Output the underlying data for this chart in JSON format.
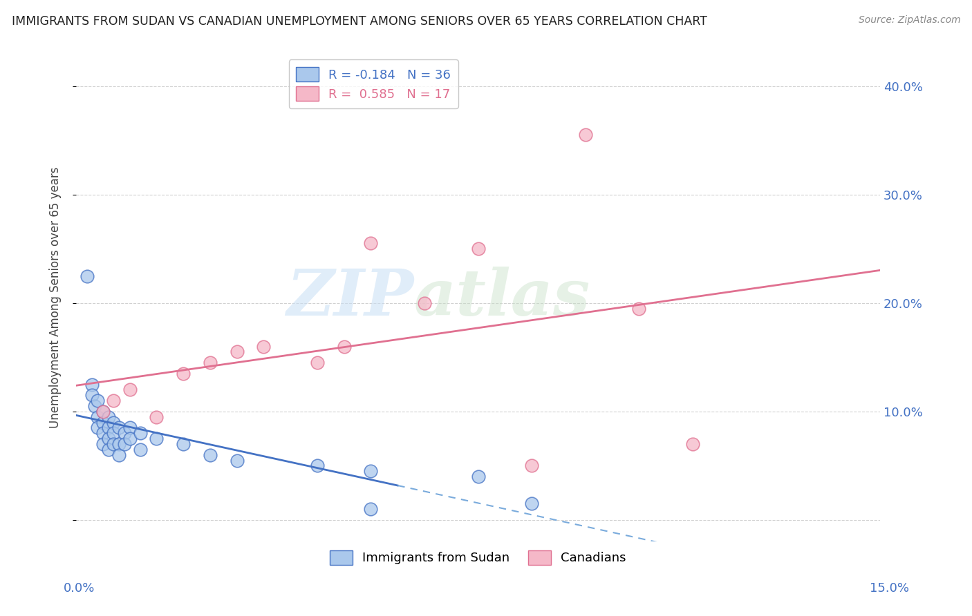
{
  "title": "IMMIGRANTS FROM SUDAN VS CANADIAN UNEMPLOYMENT AMONG SENIORS OVER 65 YEARS CORRELATION CHART",
  "source": "Source: ZipAtlas.com",
  "ylabel": "Unemployment Among Seniors over 65 years",
  "xlim": [
    0.0,
    15.0
  ],
  "ylim": [
    -2.0,
    43.0
  ],
  "xtick_labels": [
    "0.0%",
    "15.0%"
  ],
  "xtick_vals": [
    0.0,
    15.0
  ],
  "ytick_vals": [
    0,
    10,
    20,
    30,
    40
  ],
  "ytick_labels": [
    "",
    "10.0%",
    "20.0%",
    "30.0%",
    "40.0%"
  ],
  "legend_blue_label": "R = -0.184   N = 36",
  "legend_pink_label": "R =  0.585   N = 17",
  "watermark_1": "ZIP",
  "watermark_2": "atlas",
  "blue_scatter": [
    [
      0.2,
      22.5
    ],
    [
      0.3,
      12.5
    ],
    [
      0.3,
      11.5
    ],
    [
      0.35,
      10.5
    ],
    [
      0.4,
      11.0
    ],
    [
      0.4,
      9.5
    ],
    [
      0.4,
      8.5
    ],
    [
      0.5,
      10.0
    ],
    [
      0.5,
      9.0
    ],
    [
      0.5,
      8.0
    ],
    [
      0.5,
      7.0
    ],
    [
      0.6,
      9.5
    ],
    [
      0.6,
      8.5
    ],
    [
      0.6,
      7.5
    ],
    [
      0.6,
      6.5
    ],
    [
      0.7,
      9.0
    ],
    [
      0.7,
      8.0
    ],
    [
      0.7,
      7.0
    ],
    [
      0.8,
      8.5
    ],
    [
      0.8,
      7.0
    ],
    [
      0.8,
      6.0
    ],
    [
      0.9,
      8.0
    ],
    [
      0.9,
      7.0
    ],
    [
      1.0,
      8.5
    ],
    [
      1.0,
      7.5
    ],
    [
      1.2,
      8.0
    ],
    [
      1.2,
      6.5
    ],
    [
      1.5,
      7.5
    ],
    [
      2.0,
      7.0
    ],
    [
      2.5,
      6.0
    ],
    [
      3.0,
      5.5
    ],
    [
      4.5,
      5.0
    ],
    [
      5.5,
      4.5
    ],
    [
      7.5,
      4.0
    ],
    [
      8.5,
      1.5
    ],
    [
      5.5,
      1.0
    ]
  ],
  "pink_scatter": [
    [
      0.5,
      10.0
    ],
    [
      0.7,
      11.0
    ],
    [
      1.0,
      12.0
    ],
    [
      1.5,
      9.5
    ],
    [
      2.0,
      13.5
    ],
    [
      2.5,
      14.5
    ],
    [
      3.0,
      15.5
    ],
    [
      3.5,
      16.0
    ],
    [
      4.5,
      14.5
    ],
    [
      5.0,
      16.0
    ],
    [
      5.5,
      25.5
    ],
    [
      6.5,
      20.0
    ],
    [
      7.5,
      25.0
    ],
    [
      9.5,
      35.5
    ],
    [
      10.5,
      19.5
    ],
    [
      11.5,
      7.0
    ],
    [
      8.5,
      5.0
    ]
  ],
  "blue_color": "#aac8ec",
  "blue_edge_color": "#4472c4",
  "pink_color": "#f5b8c8",
  "pink_edge_color": "#e07090",
  "blue_trend_solid_color": "#4472c4",
  "blue_trend_dash_color": "#7aabdc",
  "pink_trend_color": "#e07090",
  "grid_color": "#cccccc",
  "right_axis_color": "#4472c4",
  "background_color": "#ffffff"
}
